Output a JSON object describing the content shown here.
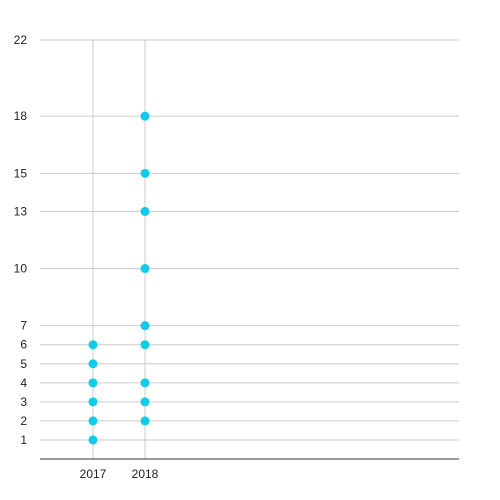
{
  "chart_data": {
    "type": "scatter",
    "categories": [
      "2017",
      "2018"
    ],
    "series": [
      {
        "points": [
          {
            "x": "2017",
            "y": 1
          },
          {
            "x": "2017",
            "y": 2
          },
          {
            "x": "2017",
            "y": 3
          },
          {
            "x": "2017",
            "y": 4
          },
          {
            "x": "2017",
            "y": 5
          },
          {
            "x": "2017",
            "y": 6
          },
          {
            "x": "2018",
            "y": 2
          },
          {
            "x": "2018",
            "y": 3
          },
          {
            "x": "2018",
            "y": 4
          },
          {
            "x": "2018",
            "y": 6
          },
          {
            "x": "2018",
            "y": 7
          },
          {
            "x": "2018",
            "y": 10
          },
          {
            "x": "2018",
            "y": 13
          },
          {
            "x": "2018",
            "y": 15
          },
          {
            "x": "2018",
            "y": 18
          }
        ]
      }
    ],
    "y_ticks": [
      1,
      2,
      3,
      4,
      5,
      6,
      7,
      10,
      13,
      15,
      18,
      22
    ],
    "ylim": [
      0,
      22
    ],
    "title": "",
    "xlabel": "",
    "ylabel": "",
    "grid": true,
    "legend": "none",
    "colors": {
      "point": "#12cbe6",
      "grid": "#cccccc",
      "axis": "#333333",
      "text": "#222222"
    }
  }
}
